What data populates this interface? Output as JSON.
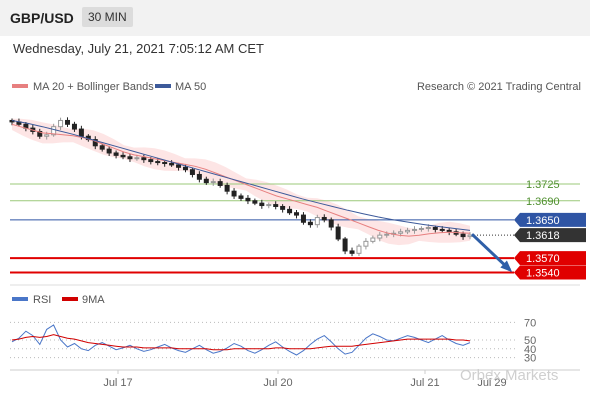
{
  "header": {
    "pair": "GBP/USD",
    "timeframe": "30 MIN",
    "datetime": "Wednesday, July 21, 2021 7:05:12 AM CET"
  },
  "legend": {
    "ma20_label": "MA 20 + Bollinger Bands",
    "ma50_label": "MA 50",
    "research": "Research © 2021 Trading Central",
    "rsi_label": "RSI",
    "ma9_label": "9MA"
  },
  "watermark": "Orbex Markets",
  "colors": {
    "up": "#999999",
    "down": "#222222",
    "ma20": "#e77f7f",
    "band": "#fde0e0",
    "ma50": "#3d5a9a",
    "green_level": "#9bc97a",
    "red_level": "#e00000",
    "blue_level": "#2f55a4",
    "current": "#333333",
    "rsi": "#4a76c8",
    "rsi_ma": "#d10000"
  },
  "chart_data": [
    {
      "type": "candlestick",
      "x_labels": [
        "Jul 17",
        "Jul 20",
        "Jul 21",
        "Jul 29"
      ],
      "ylim": [
        1.352,
        1.3905
      ],
      "levels": [
        {
          "value": 1.3725,
          "label": "1.3725",
          "kind": "resistance-minor"
        },
        {
          "value": 1.369,
          "label": "1.3690",
          "kind": "resistance-minor"
        },
        {
          "value": 1.365,
          "label": "1.3650",
          "kind": "pivot"
        },
        {
          "value": 1.3618,
          "label": "1.3618",
          "kind": "current"
        },
        {
          "value": 1.357,
          "label": "1.3570",
          "kind": "support"
        },
        {
          "value": 1.354,
          "label": "1.3540",
          "kind": "support"
        }
      ],
      "close_path": [
        1.3855,
        1.385,
        1.3842,
        1.3835,
        1.3825,
        1.3828,
        1.3845,
        1.3858,
        1.385,
        1.384,
        1.3825,
        1.3818,
        1.3805,
        1.3798,
        1.379,
        1.3785,
        1.3782,
        1.3778,
        1.378,
        1.3776,
        1.3772,
        1.377,
        1.3768,
        1.3765,
        1.376,
        1.3755,
        1.3745,
        1.3735,
        1.3728,
        1.373,
        1.3722,
        1.371,
        1.37,
        1.3695,
        1.369,
        1.3685,
        1.368,
        1.3682,
        1.3678,
        1.3672,
        1.3665,
        1.366,
        1.3645,
        1.364,
        1.3655,
        1.365,
        1.3635,
        1.361,
        1.3585,
        1.358,
        1.3595,
        1.3605,
        1.3612,
        1.3618,
        1.362,
        1.3622,
        1.3625,
        1.3628,
        1.363,
        1.3632,
        1.3634,
        1.363,
        1.3628,
        1.3625,
        1.362,
        1.3615,
        1.3618
      ],
      "ma20": [
        1.385,
        1.3844,
        1.3838,
        1.3832,
        1.383,
        1.3828,
        1.3826,
        1.3822,
        1.3816,
        1.3808,
        1.38,
        1.3792,
        1.3786,
        1.3782,
        1.3778,
        1.3774,
        1.377,
        1.3766,
        1.3762,
        1.3756,
        1.3748,
        1.374,
        1.3732,
        1.3724,
        1.3716,
        1.3708,
        1.37,
        1.3694,
        1.3688,
        1.3682,
        1.3676,
        1.3668,
        1.366,
        1.3652,
        1.3644,
        1.3636,
        1.3628,
        1.3622,
        1.3618,
        1.3616,
        1.3618,
        1.3621,
        1.3623,
        1.3624,
        1.3623,
        1.3622
      ],
      "ma50": [
        1.3858,
        1.3852,
        1.3845,
        1.3837,
        1.3829,
        1.382,
        1.3811,
        1.3802,
        1.3793,
        1.3784,
        1.3775,
        1.3766,
        1.3757,
        1.3748,
        1.3739,
        1.373,
        1.3721,
        1.3712,
        1.3703,
        1.3694,
        1.3686,
        1.3678,
        1.367,
        1.3663,
        1.3656,
        1.365,
        1.3645,
        1.364,
        1.3636,
        1.3632,
        1.3628
      ],
      "forecast_arrow": {
        "from": 1.362,
        "to": 1.3545
      }
    },
    {
      "type": "line",
      "title": "RSI",
      "y_ticks": [
        70,
        50,
        40,
        30
      ],
      "ylim": [
        25,
        75
      ],
      "series": [
        {
          "name": "RSI",
          "values": [
            48,
            52,
            60,
            55,
            45,
            62,
            67,
            50,
            42,
            46,
            40,
            38,
            44,
            47,
            43,
            39,
            41,
            44,
            40,
            37,
            39,
            42,
            45,
            41,
            38,
            36,
            40,
            44,
            39,
            35,
            37,
            41,
            46,
            43,
            38,
            35,
            39,
            44,
            48,
            42,
            37,
            33,
            38,
            45,
            51,
            55,
            48,
            40,
            34,
            36,
            44,
            52,
            57,
            54,
            50,
            49,
            52,
            55,
            53,
            50,
            47,
            51,
            55,
            50,
            46,
            44,
            47
          ]
        },
        {
          "name": "9MA",
          "values": [
            50,
            51,
            53,
            54,
            53,
            54,
            56,
            54,
            52,
            51,
            49,
            47,
            46,
            45,
            44,
            43,
            42,
            42,
            42,
            41,
            41,
            41,
            41,
            41,
            40,
            40,
            40,
            40,
            40,
            39,
            39,
            39,
            40,
            40,
            40,
            40,
            40,
            40,
            41,
            41,
            40,
            40,
            40,
            40,
            41,
            42,
            43,
            43,
            43,
            43,
            44,
            45,
            46,
            47,
            48,
            49,
            50,
            51,
            51,
            51,
            51,
            51,
            51,
            51,
            50,
            50,
            49
          ]
        }
      ]
    }
  ]
}
